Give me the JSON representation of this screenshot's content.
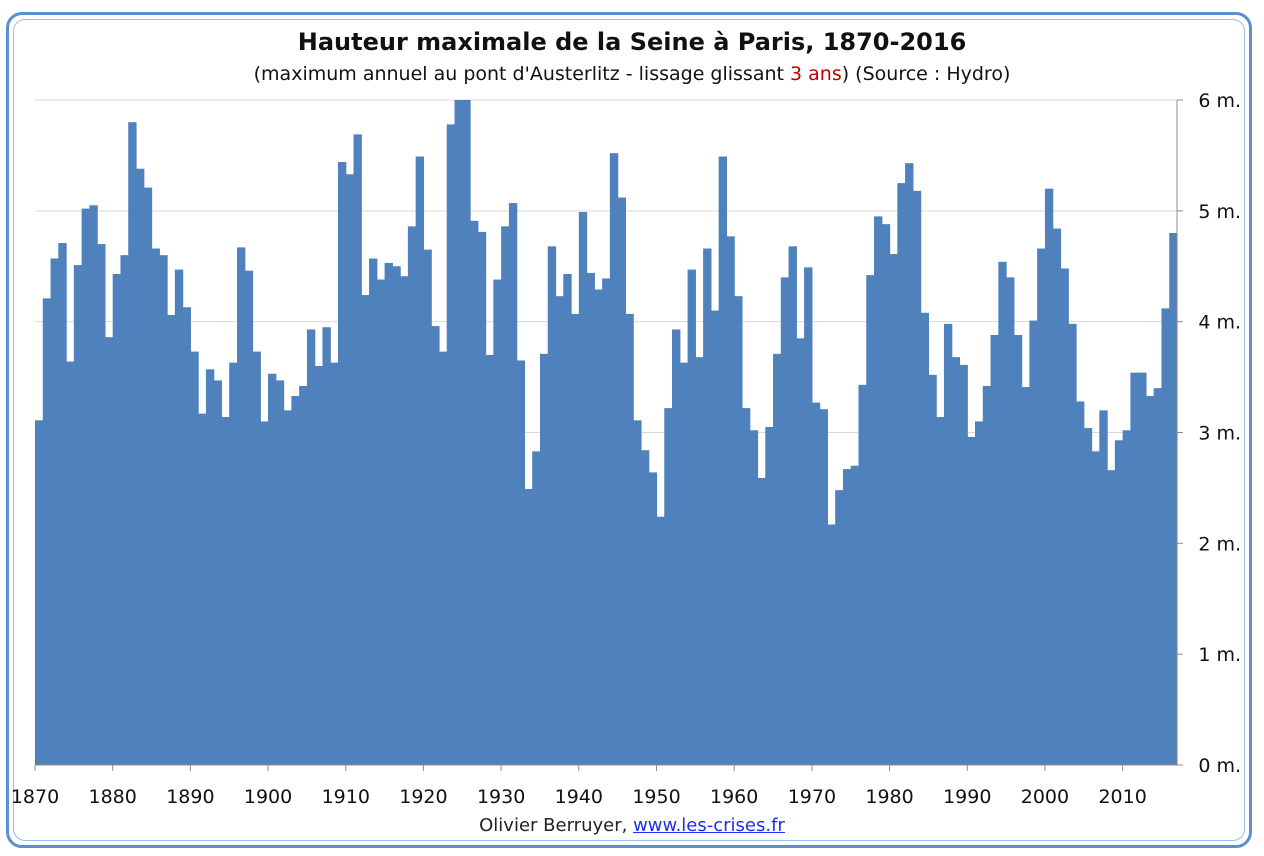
{
  "title": "Hauteur maximale de la Seine à Paris, 1870-2016",
  "subtitle": {
    "before": "(maximum annuel au pont d'Austerlitz - lissage glissant ",
    "highlight": "3 ans",
    "after": ") (Source : Hydro)"
  },
  "credit": {
    "author": "Olivier Berruyer,",
    "link": "www.les-crises.fr"
  },
  "colors": {
    "bars": "#4f81bd",
    "highlight": "#c00000",
    "link": "#1a2ff0",
    "frame": "#5b8fd0"
  },
  "chart_data": {
    "type": "bar",
    "title": "Hauteur maximale de la Seine à Paris, 1870-2016",
    "x_ticks": [
      "1870",
      "1880",
      "1890",
      "1900",
      "1910",
      "1920",
      "1930",
      "1940",
      "1950",
      "1960",
      "1970",
      "1980",
      "1990",
      "2000",
      "2010"
    ],
    "y_ticks": [
      "0 m.",
      "1 m.",
      "2 m.",
      "3 m.",
      "4 m.",
      "5 m.",
      "6 m."
    ],
    "ylim": [
      0,
      6
    ],
    "y_axis_side": "right",
    "grid": "horizontal",
    "series": [
      {
        "values": [
          3.11,
          4.21,
          4.57,
          4.71,
          3.64,
          4.51,
          5.02,
          5.05,
          4.7,
          3.86,
          4.43,
          4.6,
          5.8,
          5.38,
          5.21,
          4.66,
          4.6,
          4.06,
          4.47,
          4.13,
          3.73,
          3.17,
          3.57,
          3.47,
          3.14,
          3.63,
          4.67,
          4.46,
          3.73,
          3.1,
          3.53,
          3.47,
          3.2,
          3.33,
          3.42,
          3.93,
          3.6,
          3.95,
          3.63,
          5.44,
          5.33,
          5.69,
          4.24,
          4.57,
          4.38,
          4.53,
          4.5,
          4.41,
          4.86,
          5.49,
          4.65,
          3.96,
          3.73,
          5.78,
          6.0,
          6.0,
          4.91,
          4.81,
          3.7,
          4.38,
          4.86,
          5.07,
          3.65,
          2.49,
          2.83,
          3.71,
          4.68,
          4.23,
          4.43,
          4.07,
          4.99,
          4.44,
          4.29,
          4.39,
          5.52,
          5.12,
          4.07,
          3.11,
          2.84,
          2.64,
          2.24,
          3.22,
          3.93,
          3.63,
          4.47,
          3.68,
          4.66,
          4.1,
          5.49,
          4.77,
          4.23,
          3.22,
          3.02,
          2.59,
          3.05,
          3.71,
          4.4,
          4.68,
          3.85,
          4.49,
          3.27,
          3.21,
          2.17,
          2.48,
          2.67,
          2.7,
          3.43,
          4.42,
          4.95,
          4.88,
          4.61,
          5.25,
          5.43,
          5.18,
          4.08,
          3.52,
          3.14,
          3.98,
          3.68,
          3.61,
          2.96,
          3.1,
          3.42,
          3.88,
          4.54,
          4.4,
          3.88,
          3.41,
          4.01,
          4.66,
          5.2,
          4.84,
          4.48,
          3.98,
          3.28,
          3.04,
          2.83,
          3.2,
          2.66,
          2.93,
          3.02,
          3.54,
          3.54,
          3.33,
          3.4,
          4.12,
          4.8
        ],
        "x_start": 1870,
        "x_end": 2016
      }
    ]
  }
}
